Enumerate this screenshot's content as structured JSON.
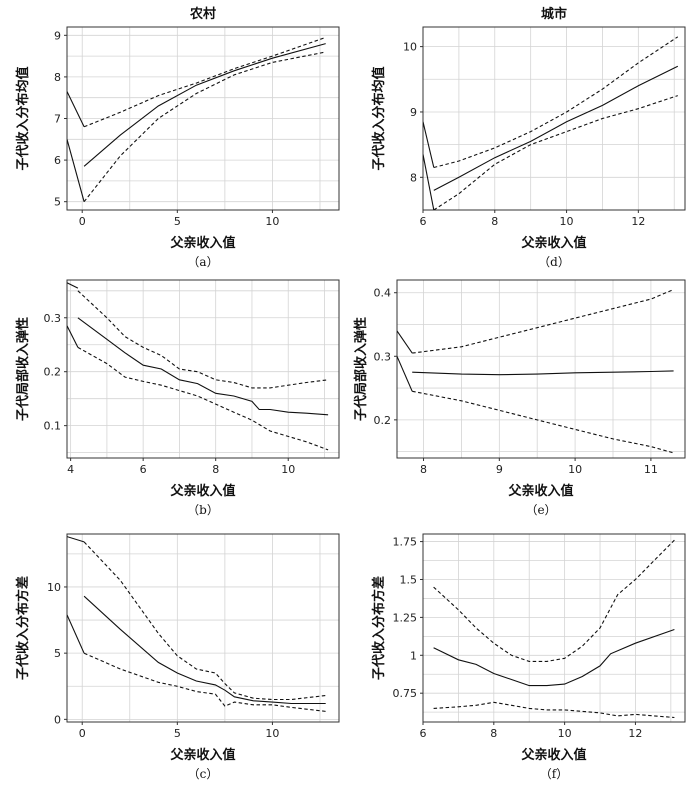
{
  "columns": [
    {
      "title": "农村"
    },
    {
      "title": "城市"
    }
  ],
  "chart_data": [
    {
      "id": "a",
      "type": "line",
      "title": "农村",
      "caption": "（a）",
      "xlabel": "父亲收入值",
      "ylabel": "子代收入分布均值",
      "xlim": [
        -0.8,
        13.5
      ],
      "ylim": [
        4.8,
        9.2
      ],
      "xticks": [
        0,
        5,
        10
      ],
      "yticks": [
        5,
        6,
        7,
        8,
        9
      ],
      "series": [
        {
          "name": "estimate",
          "style": "solid",
          "x": [
            0.1,
            2,
            4,
            6,
            8,
            10,
            12.8
          ],
          "y": [
            5.85,
            6.6,
            7.3,
            7.8,
            8.15,
            8.45,
            8.8
          ]
        },
        {
          "name": "upper",
          "style": "dashed",
          "x": [
            0.1,
            2,
            4,
            6,
            8,
            10,
            12.8
          ],
          "y": [
            6.8,
            7.15,
            7.55,
            7.85,
            8.2,
            8.5,
            8.95
          ]
        },
        {
          "name": "lower",
          "style": "dashed",
          "x": [
            0.1,
            2,
            4,
            6,
            8,
            10,
            12.8
          ],
          "y": [
            5.0,
            6.1,
            7.0,
            7.6,
            8.05,
            8.35,
            8.6
          ]
        },
        {
          "name": "left-upper",
          "style": "solid",
          "x": [
            -0.8,
            0.1
          ],
          "y": [
            7.65,
            6.8
          ]
        },
        {
          "name": "left-lower",
          "style": "solid",
          "x": [
            -0.8,
            0.1
          ],
          "y": [
            6.5,
            5.0
          ]
        }
      ]
    },
    {
      "id": "d",
      "type": "line",
      "title": "城市",
      "caption": "（d）",
      "xlabel": "父亲收入值",
      "ylabel": "子代收入分布均值",
      "xlim": [
        6.0,
        13.3
      ],
      "ylim": [
        7.5,
        10.3
      ],
      "xticks": [
        6,
        8,
        10,
        12
      ],
      "yticks": [
        8,
        9,
        10
      ],
      "series": [
        {
          "name": "estimate",
          "style": "solid",
          "x": [
            6.3,
            7,
            8,
            9,
            10,
            11,
            12,
            13.1
          ],
          "y": [
            7.8,
            8.0,
            8.3,
            8.55,
            8.85,
            9.1,
            9.4,
            9.7
          ]
        },
        {
          "name": "upper",
          "style": "dashed",
          "x": [
            6.3,
            7,
            8,
            9,
            10,
            11,
            12,
            13.1
          ],
          "y": [
            8.15,
            8.25,
            8.45,
            8.7,
            9.0,
            9.35,
            9.75,
            10.15
          ]
        },
        {
          "name": "lower",
          "style": "dashed",
          "x": [
            6.3,
            7,
            8,
            9,
            10,
            11,
            12,
            13.1
          ],
          "y": [
            7.5,
            7.75,
            8.2,
            8.5,
            8.7,
            8.9,
            9.05,
            9.25
          ]
        },
        {
          "name": "left-upper",
          "style": "solid",
          "x": [
            6.0,
            6.3
          ],
          "y": [
            8.85,
            8.15
          ]
        },
        {
          "name": "left-lower",
          "style": "solid",
          "x": [
            6.0,
            6.3
          ],
          "y": [
            8.35,
            7.5
          ]
        }
      ]
    },
    {
      "id": "b",
      "type": "line",
      "caption": "（b）",
      "xlabel": "父亲收入值",
      "ylabel": "子代局部收入弹性",
      "xlim": [
        3.9,
        11.4
      ],
      "ylim": [
        0.04,
        0.37
      ],
      "xticks": [
        4,
        6,
        8,
        10
      ],
      "yticks": [
        0.1,
        0.2,
        0.3
      ],
      "series": [
        {
          "name": "estimate",
          "style": "solid",
          "x": [
            4.2,
            5,
            5.5,
            6,
            6.5,
            7,
            7.5,
            8,
            8.5,
            9,
            9.2,
            9.5,
            10,
            10.5,
            11.1
          ],
          "y": [
            0.3,
            0.26,
            0.235,
            0.212,
            0.205,
            0.185,
            0.178,
            0.16,
            0.155,
            0.145,
            0.13,
            0.13,
            0.125,
            0.123,
            0.12
          ]
        },
        {
          "name": "upper",
          "style": "dashed",
          "x": [
            4.2,
            5,
            5.5,
            6,
            6.5,
            7,
            7.5,
            8,
            8.5,
            9,
            9.5,
            10,
            10.5,
            11.1
          ],
          "y": [
            0.35,
            0.3,
            0.265,
            0.245,
            0.23,
            0.205,
            0.2,
            0.185,
            0.18,
            0.17,
            0.17,
            0.175,
            0.18,
            0.185
          ]
        },
        {
          "name": "lower",
          "style": "dashed",
          "x": [
            4.2,
            5,
            5.5,
            6,
            6.5,
            7,
            7.5,
            8,
            8.5,
            9,
            9.5,
            10,
            10.5,
            11.1
          ],
          "y": [
            0.245,
            0.215,
            0.19,
            0.182,
            0.175,
            0.165,
            0.155,
            0.14,
            0.125,
            0.11,
            0.09,
            0.08,
            0.07,
            0.055
          ]
        },
        {
          "name": "left-upper",
          "style": "solid",
          "x": [
            3.9,
            4.2
          ],
          "y": [
            0.365,
            0.355
          ]
        },
        {
          "name": "left-lower",
          "style": "solid",
          "x": [
            3.9,
            4.2
          ],
          "y": [
            0.285,
            0.245
          ]
        }
      ]
    },
    {
      "id": "e",
      "type": "line",
      "caption": "（e）",
      "xlabel": "父亲收入值",
      "ylabel": "子代局部收入弹性",
      "xlim": [
        7.65,
        11.45
      ],
      "ylim": [
        0.14,
        0.42
      ],
      "xticks": [
        8,
        9,
        10,
        11
      ],
      "yticks": [
        0.2,
        0.3,
        0.4
      ],
      "series": [
        {
          "name": "estimate",
          "style": "solid",
          "x": [
            7.85,
            8.5,
            9,
            9.5,
            10,
            10.5,
            11,
            11.3
          ],
          "y": [
            0.275,
            0.272,
            0.271,
            0.272,
            0.274,
            0.275,
            0.276,
            0.277
          ]
        },
        {
          "name": "upper",
          "style": "dashed",
          "x": [
            7.85,
            8.5,
            9,
            9.5,
            10,
            10.5,
            11,
            11.3
          ],
          "y": [
            0.305,
            0.315,
            0.33,
            0.345,
            0.36,
            0.375,
            0.39,
            0.405
          ]
        },
        {
          "name": "lower",
          "style": "dashed",
          "x": [
            7.85,
            8.5,
            9,
            9.5,
            10,
            10.5,
            11,
            11.3
          ],
          "y": [
            0.245,
            0.23,
            0.215,
            0.2,
            0.185,
            0.17,
            0.158,
            0.148
          ]
        },
        {
          "name": "left-upper",
          "style": "solid",
          "x": [
            7.65,
            7.85
          ],
          "y": [
            0.34,
            0.305
          ]
        },
        {
          "name": "left-lower",
          "style": "solid",
          "x": [
            7.65,
            7.85
          ],
          "y": [
            0.3,
            0.245
          ]
        }
      ]
    },
    {
      "id": "c",
      "type": "line",
      "caption": "（c）",
      "xlabel": "父亲收入值",
      "ylabel": "子代收入分布方差",
      "xlim": [
        -0.8,
        13.5
      ],
      "ylim": [
        -0.2,
        14.0
      ],
      "xticks": [
        0,
        5,
        10
      ],
      "yticks": [
        0,
        5,
        10
      ],
      "series": [
        {
          "name": "estimate",
          "style": "solid",
          "x": [
            0.1,
            2,
            4,
            5,
            6,
            7,
            7.5,
            8,
            9,
            10,
            11,
            12.8
          ],
          "y": [
            9.3,
            6.8,
            4.3,
            3.5,
            2.9,
            2.6,
            2.2,
            1.7,
            1.4,
            1.3,
            1.2,
            1.2
          ]
        },
        {
          "name": "upper",
          "style": "dashed",
          "x": [
            0.1,
            2,
            4,
            5,
            6,
            7,
            7.5,
            8,
            9,
            10,
            11,
            12.8
          ],
          "y": [
            13.4,
            10.5,
            6.5,
            4.8,
            3.8,
            3.5,
            2.7,
            2.0,
            1.6,
            1.5,
            1.5,
            1.8
          ]
        },
        {
          "name": "lower",
          "style": "dashed",
          "x": [
            0.1,
            2,
            4,
            5,
            6,
            7,
            7.5,
            8,
            9,
            10,
            11,
            12.8
          ],
          "y": [
            5.0,
            3.8,
            2.8,
            2.5,
            2.1,
            1.9,
            1.0,
            1.3,
            1.1,
            1.1,
            0.9,
            0.6
          ]
        },
        {
          "name": "left-upper",
          "style": "solid",
          "x": [
            -0.8,
            0.1
          ],
          "y": [
            13.8,
            13.4
          ]
        },
        {
          "name": "left-lower",
          "style": "solid",
          "x": [
            -0.8,
            0.1
          ],
          "y": [
            7.9,
            5.0
          ]
        }
      ]
    },
    {
      "id": "f",
      "type": "line",
      "caption": "（f）",
      "xlabel": "父亲收入值",
      "ylabel": "子代收入分布方差",
      "xlim": [
        6.0,
        13.4
      ],
      "ylim": [
        0.56,
        1.8
      ],
      "xticks": [
        6,
        8,
        10,
        12
      ],
      "yticks": [
        0.75,
        1.0,
        1.25,
        1.5,
        1.75
      ],
      "series": [
        {
          "name": "estimate",
          "style": "solid",
          "x": [
            6.3,
            7,
            7.5,
            8,
            8.5,
            9,
            9.5,
            10,
            10.5,
            11,
            11.3,
            12,
            13.1
          ],
          "y": [
            1.05,
            0.97,
            0.94,
            0.88,
            0.84,
            0.8,
            0.8,
            0.81,
            0.86,
            0.93,
            1.01,
            1.08,
            1.17
          ]
        },
        {
          "name": "upper",
          "style": "dashed",
          "x": [
            6.3,
            7,
            7.5,
            8,
            8.5,
            9,
            9.5,
            10,
            10.5,
            11,
            11.5,
            12,
            13.1
          ],
          "y": [
            1.45,
            1.3,
            1.18,
            1.08,
            1.0,
            0.96,
            0.96,
            0.98,
            1.06,
            1.18,
            1.4,
            1.5,
            1.76
          ]
        },
        {
          "name": "lower",
          "style": "dashed",
          "x": [
            6.3,
            7,
            7.5,
            8,
            8.5,
            9,
            9.5,
            10,
            10.5,
            11,
            11.5,
            12,
            13.1
          ],
          "y": [
            0.65,
            0.66,
            0.67,
            0.69,
            0.67,
            0.65,
            0.64,
            0.64,
            0.63,
            0.62,
            0.6,
            0.61,
            0.59
          ]
        }
      ]
    }
  ]
}
